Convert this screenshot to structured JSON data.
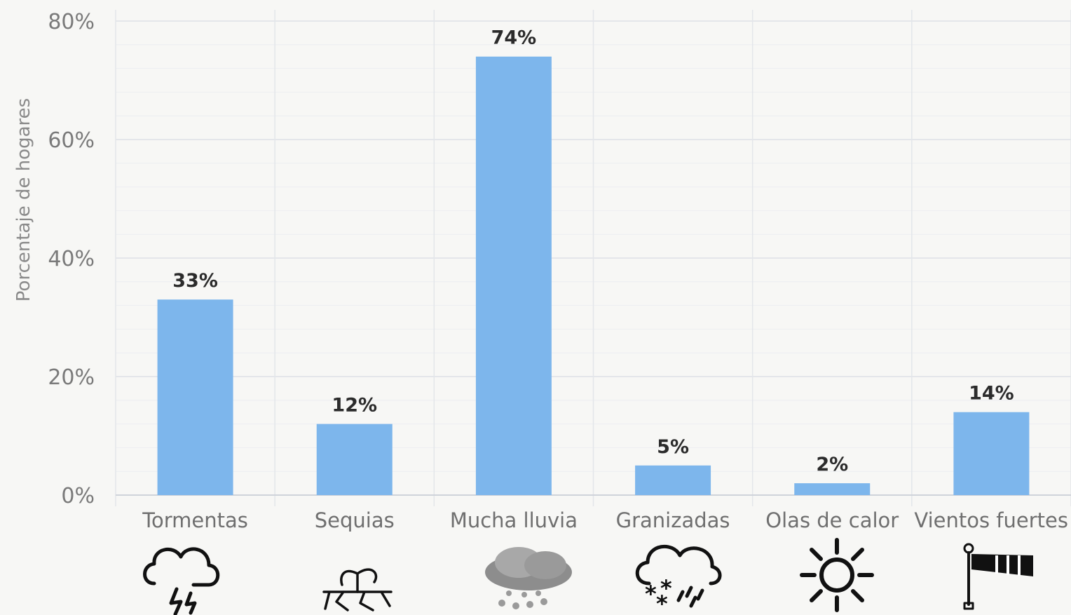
{
  "chart_data": {
    "type": "bar",
    "categories": [
      "Tormentas",
      "Sequias",
      "Mucha lluvia",
      "Granizadas",
      "Olas de calor",
      "Vientos fuertes"
    ],
    "values": [
      33,
      12,
      74,
      5,
      2,
      14
    ],
    "data_labels": [
      "33%",
      "12%",
      "74%",
      "5%",
      "2%",
      "14%"
    ],
    "ylabel": "Porcentaje de hogares",
    "ylim": [
      0,
      80
    ],
    "yticks": [
      0,
      20,
      40,
      60,
      80
    ],
    "ytick_labels": [
      "0%",
      "20%",
      "40%",
      "60%",
      "80%"
    ],
    "grid": true,
    "bar_color": "#7db6ec",
    "icons": [
      "storm-icon",
      "drought-icon",
      "heavy-rain-icon",
      "hail-icon",
      "heatwave-sun-icon",
      "windsock-icon"
    ]
  }
}
